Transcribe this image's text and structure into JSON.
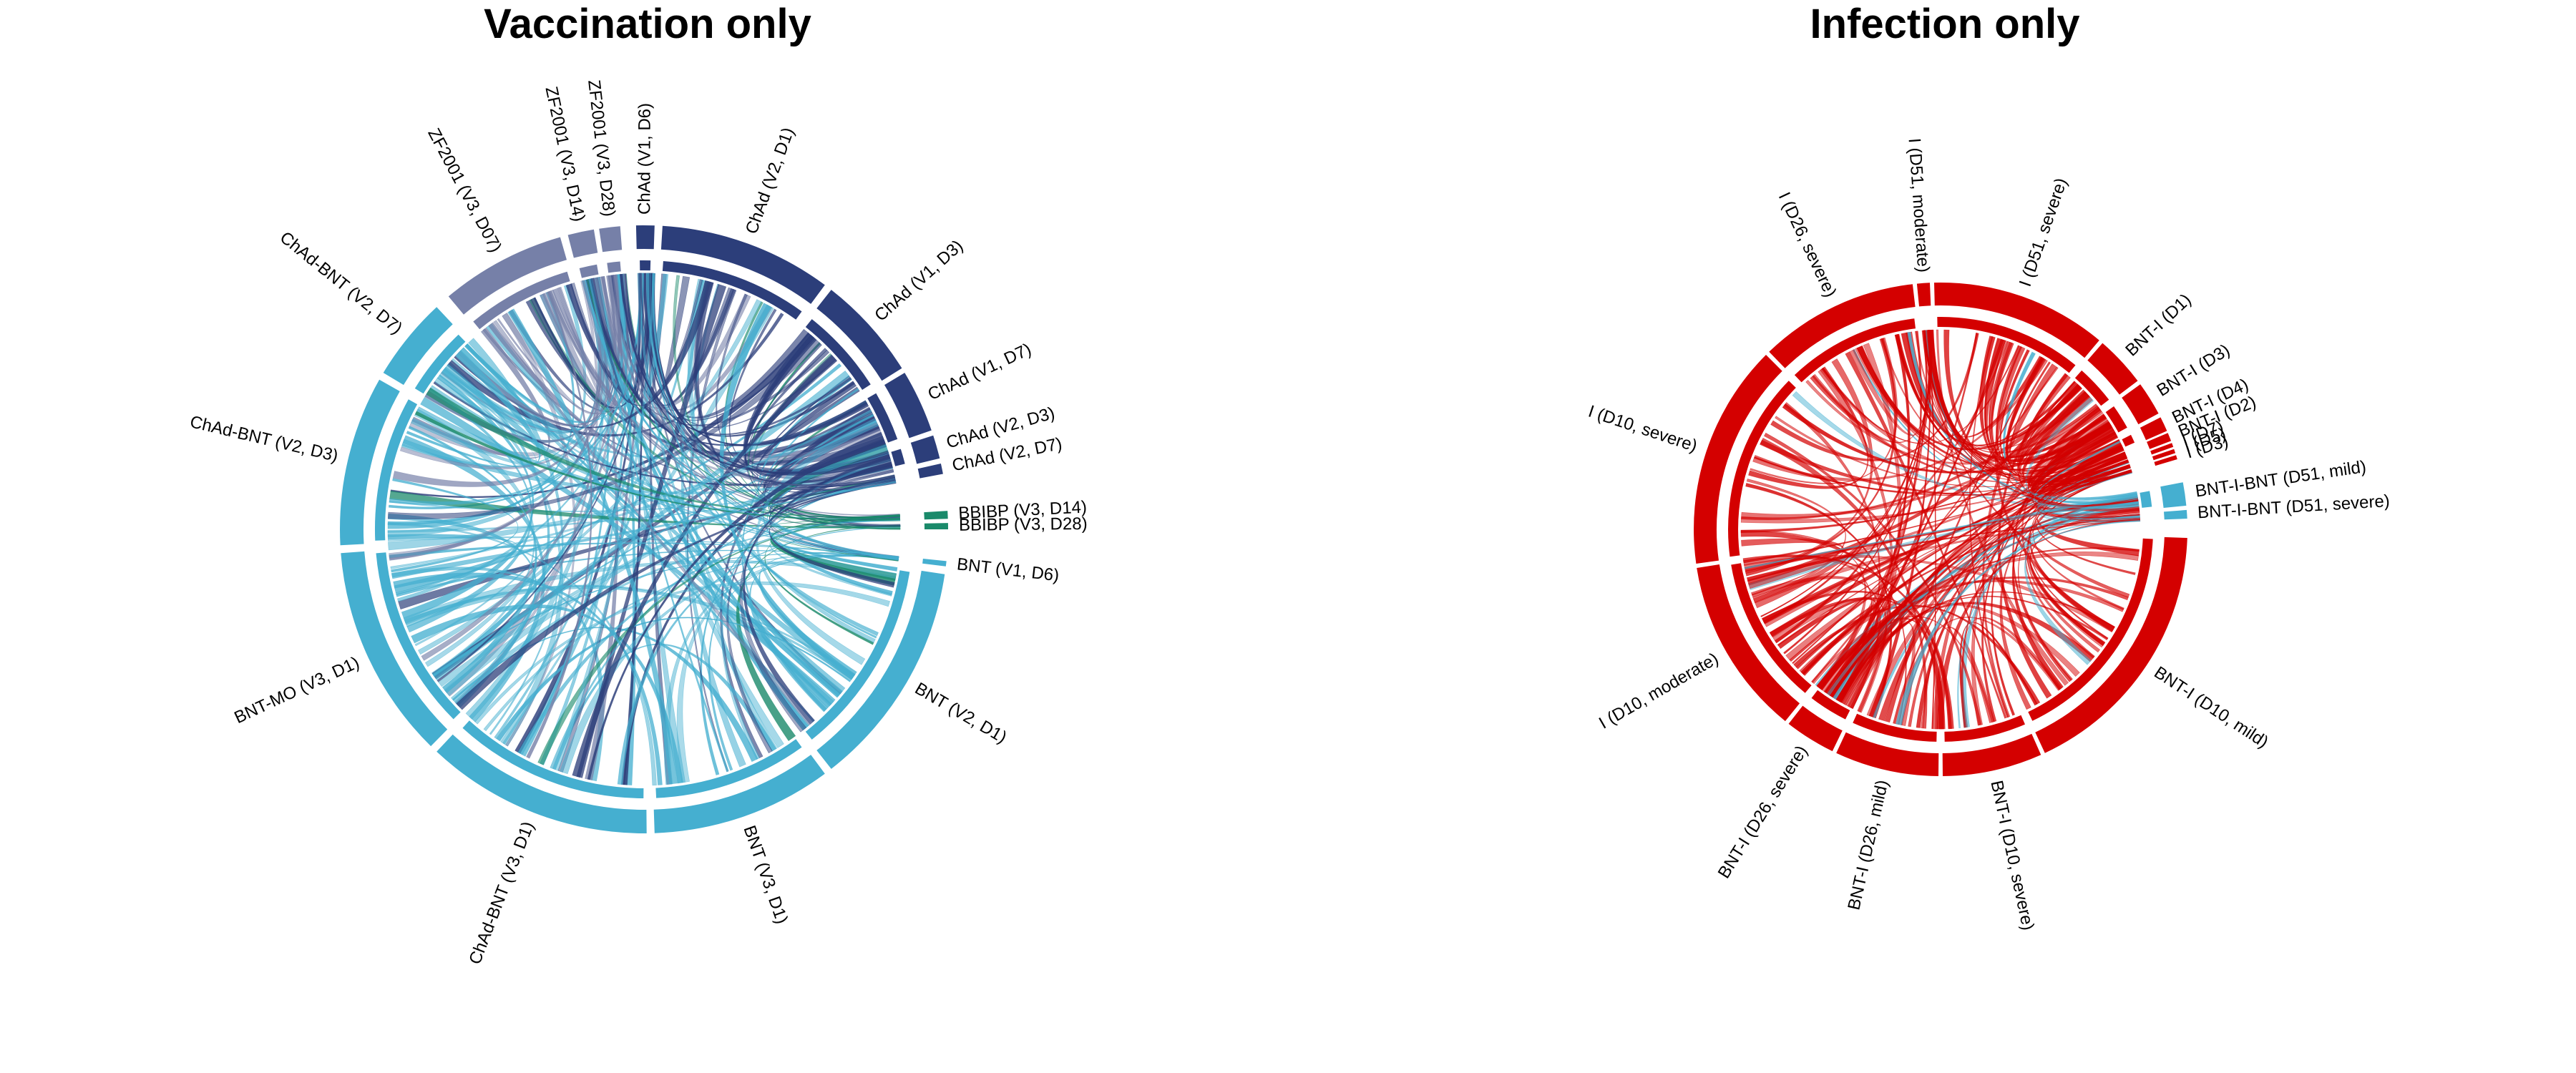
{
  "panels": [
    {
      "title": "Vaccination only",
      "segments": [
        {
          "label": "ChAd (V1, D6)",
          "color": "#2c3e7a",
          "start": -1.5,
          "end": 2.0
        },
        {
          "label": "ChAd (V2, D1)",
          "color": "#2c3e7a",
          "start": 3.5,
          "end": 36.5
        },
        {
          "label": "ChAd (V1, D3)",
          "color": "#2c3e7a",
          "start": 38.0,
          "end": 58.0
        },
        {
          "label": "ChAd (V1, D7)",
          "color": "#2c3e7a",
          "start": 59.0,
          "end": 71.0
        },
        {
          "label": "ChAd (V2, D3)",
          "color": "#2c3e7a",
          "start": 72.0,
          "end": 76.5
        },
        {
          "label": "ChAd (V2, D7)",
          "color": "#2c3e7a",
          "start": 77.5,
          "end": 79.5
        },
        {
          "label": "BBIBP (V3, D14)",
          "color": "#1a8a6a",
          "start": 86.5,
          "end": 88.0
        },
        {
          "label": "BBIBP (V3, D28)",
          "color": "#1a8a6a",
          "start": 88.8,
          "end": 90.0
        },
        {
          "label": "BNT (V1, D6)",
          "color": "#45afd0",
          "start": 96.0,
          "end": 97.0
        },
        {
          "label": "BNT (V2, D1)",
          "color": "#45afd0",
          "start": 98.5,
          "end": 142.0
        },
        {
          "label": "BNT (V3, D1)",
          "color": "#45afd0",
          "start": 143.5,
          "end": 178.0
        },
        {
          "label": "ChAd-BNT (V3, D1)",
          "color": "#45afd0",
          "start": 179.5,
          "end": 223.0
        },
        {
          "label": "BNT-MO (V3, D1)",
          "color": "#45afd0",
          "start": 224.5,
          "end": 265.5
        },
        {
          "label": "ChAd-BNT (V2, D3)",
          "color": "#45afd0",
          "start": 267.0,
          "end": 299.5
        },
        {
          "label": "ChAd-BNT (V2, D7)",
          "color": "#45afd0",
          "start": 301.0,
          "end": 317.0
        },
        {
          "label": "ZF2001 (V3, D07)",
          "color": "#7680a8",
          "start": 320.0,
          "end": 344.0
        },
        {
          "label": "ZF2001 (V3, D14)",
          "color": "#7680a8",
          "start": 345.5,
          "end": 350.5
        },
        {
          "label": "ZF2001 (V3, D28)",
          "color": "#7680a8",
          "start": 351.5,
          "end": 355.5
        }
      ]
    },
    {
      "title": "Infection only",
      "segments": [
        {
          "label": "I (D26, severe)",
          "color": "#d40000",
          "start": 316.0,
          "end": 353.5
        },
        {
          "label": "I (D51, moderate)",
          "color": "#d40000",
          "start": 354.5,
          "end": 357.5
        },
        {
          "label": "I (D51, severe)",
          "color": "#d40000",
          "start": 358.5,
          "end": 40.0
        },
        {
          "label": "BNT-I (D1)",
          "color": "#d40000",
          "start": 41.0,
          "end": 53.0
        },
        {
          "label": "BNT-I (D3)",
          "color": "#d40000",
          "start": 54.0,
          "end": 62.0
        },
        {
          "label": "BNT-I (D4)",
          "color": "#d40000",
          "start": 63.0,
          "end": 66.5
        },
        {
          "label": "BNT-I (D2)",
          "color": "#d40000",
          "start": 67.0,
          "end": 69.0
        },
        {
          "label": "I (D7)",
          "color": "#d40000",
          "start": 69.5,
          "end": 70.5
        },
        {
          "label": "I (D5)",
          "color": "#d40000",
          "start": 71.0,
          "end": 72.0
        },
        {
          "label": "I (D3)",
          "color": "#d40000",
          "start": 72.5,
          "end": 73.5
        },
        {
          "label": "BNT-I-BNT (D51, mild)",
          "color": "#45afd0",
          "start": 79.0,
          "end": 84.5
        },
        {
          "label": "BNT-I-BNT (D51, severe)",
          "color": "#45afd0",
          "start": 85.5,
          "end": 87.5
        },
        {
          "label": "BNT-I (D10, mild)",
          "color": "#d40000",
          "start": 92.0,
          "end": 155.0
        },
        {
          "label": "BNT-I (D10, severe)",
          "color": "#d40000",
          "start": 156.0,
          "end": 179.5
        },
        {
          "label": "BNT-I (D26, mild)",
          "color": "#d40000",
          "start": 180.5,
          "end": 205.0
        },
        {
          "label": "BNT-I (D26, severe)",
          "color": "#d40000",
          "start": 206.0,
          "end": 218.0
        },
        {
          "label": "I (D10, moderate)",
          "color": "#d40000",
          "start": 219.0,
          "end": 261.0
        },
        {
          "label": "I (D10, severe)",
          "color": "#d40000",
          "start": 262.0,
          "end": 315.0
        }
      ]
    }
  ]
}
